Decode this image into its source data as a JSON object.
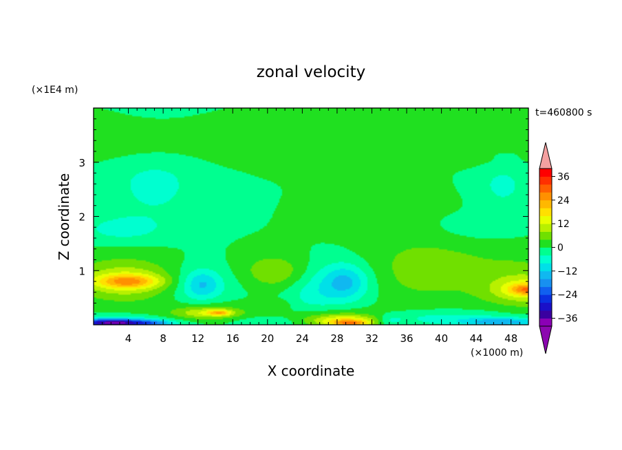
{
  "chart_data": {
    "type": "heatmap",
    "title": "zonal velocity",
    "xlabel": "X coordinate",
    "ylabel": "Z coordinate",
    "x_unit": "(×1000 m)",
    "y_unit": "(×1E4 m)",
    "time_label": "t=460800 s",
    "xlim": [
      0,
      50
    ],
    "ylim": [
      0,
      4.0
    ],
    "xticks": [
      4,
      8,
      12,
      16,
      20,
      24,
      28,
      32,
      36,
      40,
      44,
      48
    ],
    "yticks": [
      1,
      2,
      3
    ],
    "background_value": 0,
    "colorbar": {
      "tick_labels": [
        "36",
        "24",
        "12",
        "0",
        "−12",
        "−24",
        "−36"
      ],
      "levels": [
        -40,
        -36,
        -32,
        -28,
        -24,
        -20,
        -16,
        -12,
        -8,
        -4,
        0,
        4,
        8,
        12,
        16,
        20,
        24,
        28,
        32,
        36,
        40
      ],
      "colors": [
        "#8b00b5",
        "#3a00a0",
        "#1a10c8",
        "#0a30e0",
        "#1060f0",
        "#1890f0",
        "#10b8f0",
        "#00e0e8",
        "#00ffd0",
        "#00ff90",
        "#20e020",
        "#70e000",
        "#b8f000",
        "#e8ff00",
        "#ffe000",
        "#ffb800",
        "#ff9000",
        "#ff6000",
        "#ff3000",
        "#ff0000"
      ],
      "over_color": "#f4a0a0",
      "under_color": "#8c08b0"
    },
    "blobs": [
      {
        "x": 25,
        "z": 3.3,
        "rx": 28,
        "rz": 0.32,
        "value": 2
      },
      {
        "x": 4,
        "z": 3.35,
        "rx": 10,
        "rz": 0.35,
        "value": 2.5
      },
      {
        "x": 36,
        "z": 3.0,
        "rx": 14,
        "rz": 0.12,
        "value": 2
      },
      {
        "x": 7,
        "z": 2.6,
        "rx": 6,
        "rz": 0.8,
        "value": -5
      },
      {
        "x": 47,
        "z": 2.55,
        "rx": 3.5,
        "rz": 0.5,
        "value": -5
      },
      {
        "x": 3,
        "z": 1.75,
        "rx": 5,
        "rz": 0.25,
        "value": -5
      },
      {
        "x": 44,
        "z": 1.8,
        "rx": 6,
        "rz": 0.3,
        "value": -4
      },
      {
        "x": 40,
        "z": 1.7,
        "rx": 9,
        "rz": 0.7,
        "value": 2
      },
      {
        "x": 38,
        "z": 0.95,
        "rx": 8,
        "rz": 0.6,
        "value": 5
      },
      {
        "x": 4,
        "z": 0.95,
        "rx": 7,
        "rz": 0.55,
        "value": 3
      },
      {
        "x": 3.5,
        "z": 0.8,
        "rx": 5.5,
        "rz": 0.32,
        "value": 10
      },
      {
        "x": 4,
        "z": 0.8,
        "rx": 3.5,
        "rz": 0.12,
        "value": 15
      },
      {
        "x": 50,
        "z": 0.85,
        "rx": 6,
        "rz": 0.55,
        "value": 4
      },
      {
        "x": 49.5,
        "z": 0.65,
        "rx": 4,
        "rz": 0.25,
        "value": 11
      },
      {
        "x": 50,
        "z": 0.65,
        "rx": 2,
        "rz": 0.1,
        "value": 15
      },
      {
        "x": 12,
        "z": 0.7,
        "rx": 4,
        "rz": 0.45,
        "value": -5
      },
      {
        "x": 12.5,
        "z": 0.75,
        "rx": 2,
        "rz": 0.25,
        "value": -9
      },
      {
        "x": 28.5,
        "z": 0.75,
        "rx": 4,
        "rz": 0.5,
        "value": -6
      },
      {
        "x": 29,
        "z": 0.8,
        "rx": 2.5,
        "rz": 0.3,
        "value": -9
      },
      {
        "x": 20,
        "z": 1.05,
        "rx": 4,
        "rz": 0.3,
        "value": 3
      },
      {
        "x": 21,
        "z": 0.95,
        "rx": 3,
        "rz": 0.28,
        "value": 5
      },
      {
        "x": 21.5,
        "z": 0.37,
        "rx": 1.2,
        "rz": 0.1,
        "value": 3
      },
      {
        "x": 25,
        "z": 0.55,
        "rx": 3,
        "rz": 0.35,
        "value": -4
      },
      {
        "x": 13,
        "z": 0.25,
        "rx": 5,
        "rz": 0.2,
        "value": 5
      },
      {
        "x": 13,
        "z": 0.22,
        "rx": 3.5,
        "rz": 0.1,
        "value": 9
      },
      {
        "x": 14.5,
        "z": 0.22,
        "rx": 1.3,
        "rz": 0.05,
        "value": 14
      },
      {
        "x": 28.5,
        "z": 0.12,
        "rx": 5.5,
        "rz": 0.2,
        "value": 6
      },
      {
        "x": 29,
        "z": 0.08,
        "rx": 4,
        "rz": 0.1,
        "value": 13
      },
      {
        "x": 29.5,
        "z": 0.03,
        "rx": 2,
        "rz": 0.05,
        "value": 17
      },
      {
        "x": 2,
        "z": 0.02,
        "rx": 6,
        "rz": 0.12,
        "value": -17
      },
      {
        "x": 2.5,
        "z": 0.04,
        "rx": 4,
        "rz": 0.06,
        "value": -22
      },
      {
        "x": 7,
        "z": 0.03,
        "rx": 2,
        "rz": 0.05,
        "value": -8
      },
      {
        "x": 40,
        "z": 0.12,
        "rx": 8,
        "rz": 0.15,
        "value": -6
      },
      {
        "x": 47,
        "z": 0.05,
        "rx": 4.5,
        "rz": 0.08,
        "value": -14
      },
      {
        "x": 20,
        "z": 0.05,
        "rx": 4,
        "rz": 0.1,
        "value": -4
      },
      {
        "x": 34,
        "z": 0.08,
        "rx": 1.5,
        "rz": 0.1,
        "value": -6
      }
    ]
  }
}
